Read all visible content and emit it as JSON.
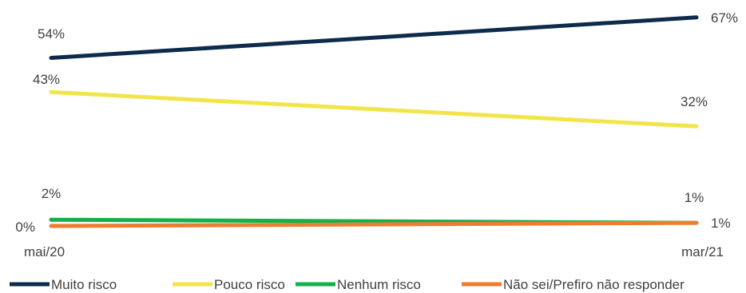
{
  "chart_data": {
    "type": "line",
    "x": [
      "mai/20",
      "mar/21"
    ],
    "y_zero_label": "0%",
    "series": [
      {
        "name": "Muito risco",
        "values": [
          54,
          67
        ],
        "labels": [
          "54%",
          "67%"
        ],
        "color": "#0d2b4a"
      },
      {
        "name": "Pouco risco",
        "values": [
          43,
          32
        ],
        "labels": [
          "43%",
          "32%"
        ],
        "color": "#f2e54b"
      },
      {
        "name": "Nenhum risco",
        "values": [
          2,
          1
        ],
        "labels": [
          "2%",
          "1%"
        ],
        "color": "#13b04b"
      },
      {
        "name": "Não sei/Prefiro não responder",
        "values": [
          0,
          1
        ],
        "labels": [
          null,
          "1%"
        ],
        "color": "#ed7d31"
      }
    ],
    "legend_position": "bottom",
    "grid": false
  }
}
